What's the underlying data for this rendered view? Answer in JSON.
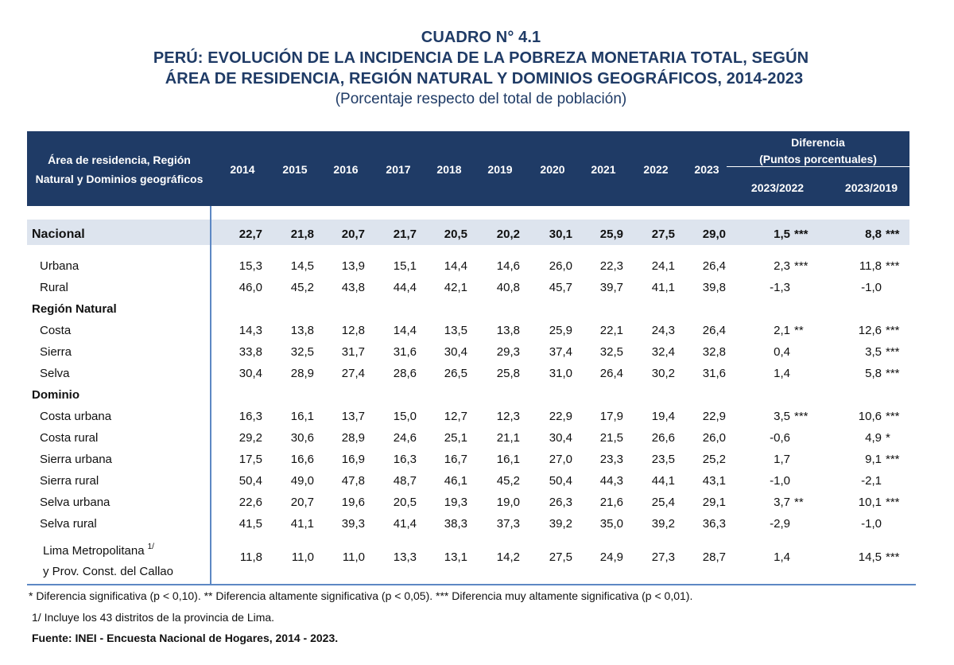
{
  "titles": {
    "line1": "CUADRO N° 4.1",
    "line2": "PERÚ: EVOLUCIÓN DE LA INCIDENCIA DE LA POBREZA MONETARIA TOTAL, SEGÚN",
    "line3": "ÁREA DE RESIDENCIA, REGIÓN NATURAL Y DOMINIOS GEOGRÁFICOS, 2014-2023",
    "line4": "(Porcentaje respecto del total de población)"
  },
  "header": {
    "area_line1": "Área de residencia, Región",
    "area_line2": "Natural y Dominios geográficos",
    "years": [
      "2014",
      "2015",
      "2016",
      "2017",
      "2018",
      "2019",
      "2020",
      "2021",
      "2022",
      "2023"
    ],
    "dif_line1": "Diferencia",
    "dif_line2": "(Puntos porcentuales)",
    "dif_col1": "2023/2022",
    "dif_col2": "2023/2019"
  },
  "rows": [
    {
      "label": "Nacional",
      "kind": "nacional",
      "values": [
        "22,7",
        "21,8",
        "20,7",
        "21,7",
        "20,5",
        "20,2",
        "30,1",
        "25,9",
        "27,5",
        "29,0"
      ],
      "d1": "1,5",
      "s1": "***",
      "d2": "8,8",
      "s2": "***"
    },
    {
      "label": "Urbana",
      "kind": "item",
      "values": [
        "15,3",
        "14,5",
        "13,9",
        "15,1",
        "14,4",
        "14,6",
        "26,0",
        "22,3",
        "24,1",
        "26,4"
      ],
      "d1": "2,3",
      "s1": "***",
      "d2": "11,8",
      "s2": "***"
    },
    {
      "label": "Rural",
      "kind": "item",
      "values": [
        "46,0",
        "45,2",
        "43,8",
        "44,4",
        "42,1",
        "40,8",
        "45,7",
        "39,7",
        "41,1",
        "39,8"
      ],
      "d1": "-1,3",
      "s1": "",
      "d2": "-1,0",
      "s2": ""
    },
    {
      "label": "Región Natural",
      "kind": "section"
    },
    {
      "label": "Costa",
      "kind": "item",
      "values": [
        "14,3",
        "13,8",
        "12,8",
        "14,4",
        "13,5",
        "13,8",
        "25,9",
        "22,1",
        "24,3",
        "26,4"
      ],
      "d1": "2,1",
      "s1": "**",
      "d2": "12,6",
      "s2": "***"
    },
    {
      "label": "Sierra",
      "kind": "item",
      "values": [
        "33,8",
        "32,5",
        "31,7",
        "31,6",
        "30,4",
        "29,3",
        "37,4",
        "32,5",
        "32,4",
        "32,8"
      ],
      "d1": "0,4",
      "s1": "",
      "d2": "3,5",
      "s2": "***"
    },
    {
      "label": "Selva",
      "kind": "item",
      "values": [
        "30,4",
        "28,9",
        "27,4",
        "28,6",
        "26,5",
        "25,8",
        "31,0",
        "26,4",
        "30,2",
        "31,6"
      ],
      "d1": "1,4",
      "s1": "",
      "d2": "5,8",
      "s2": "***"
    },
    {
      "label": "Dominio",
      "kind": "section"
    },
    {
      "label": "Costa urbana",
      "kind": "item",
      "values": [
        "16,3",
        "16,1",
        "13,7",
        "15,0",
        "12,7",
        "12,3",
        "22,9",
        "17,9",
        "19,4",
        "22,9"
      ],
      "d1": "3,5",
      "s1": "***",
      "d2": "10,6",
      "s2": "***"
    },
    {
      "label": "Costa rural",
      "kind": "item",
      "values": [
        "29,2",
        "30,6",
        "28,9",
        "24,6",
        "25,1",
        "21,1",
        "30,4",
        "21,5",
        "26,6",
        "26,0"
      ],
      "d1": "-0,6",
      "s1": "",
      "d2": "4,9",
      "s2": "*"
    },
    {
      "label": "Sierra urbana",
      "kind": "item",
      "values": [
        "17,5",
        "16,6",
        "16,9",
        "16,3",
        "16,7",
        "16,1",
        "27,0",
        "23,3",
        "23,5",
        "25,2"
      ],
      "d1": "1,7",
      "s1": "",
      "d2": "9,1",
      "s2": "***"
    },
    {
      "label": "Sierra rural",
      "kind": "item",
      "values": [
        "50,4",
        "49,0",
        "47,8",
        "48,7",
        "46,1",
        "45,2",
        "50,4",
        "44,3",
        "44,1",
        "43,1"
      ],
      "d1": "-1,0",
      "s1": "",
      "d2": "-2,1",
      "s2": ""
    },
    {
      "label": "Selva urbana",
      "kind": "item",
      "values": [
        "22,6",
        "20,7",
        "19,6",
        "20,5",
        "19,3",
        "19,0",
        "26,3",
        "21,6",
        "25,4",
        "29,1"
      ],
      "d1": "3,7",
      "s1": "**",
      "d2": "10,1",
      "s2": "***"
    },
    {
      "label": "Selva rural",
      "kind": "item",
      "values": [
        "41,5",
        "41,1",
        "39,3",
        "41,4",
        "38,3",
        "37,3",
        "39,2",
        "35,0",
        "39,2",
        "36,3"
      ],
      "d1": "-2,9",
      "s1": "",
      "d2": "-1,0",
      "s2": ""
    },
    {
      "label": "Lima Metropolitana",
      "label2": "y Prov. Const. del Callao",
      "sup": "1/",
      "kind": "lima",
      "values": [
        "11,8",
        "11,0",
        "11,0",
        "13,3",
        "13,1",
        "14,2",
        "27,5",
        "24,9",
        "27,3",
        "28,7"
      ],
      "d1": "1,4",
      "s1": "",
      "d2": "14,5",
      "s2": "***"
    }
  ],
  "footnotes": {
    "note1": "* Diferencia significativa (p < 0,10). ** Diferencia altamente significativa (p < 0,05). *** Diferencia muy altamente significativa (p < 0,01).",
    "note2": "1/ Incluye los 43 distritos de la provincia de Lima.",
    "source": "Fuente: INEI - Encuesta Nacional de Hogares, 2014 - 2023."
  }
}
